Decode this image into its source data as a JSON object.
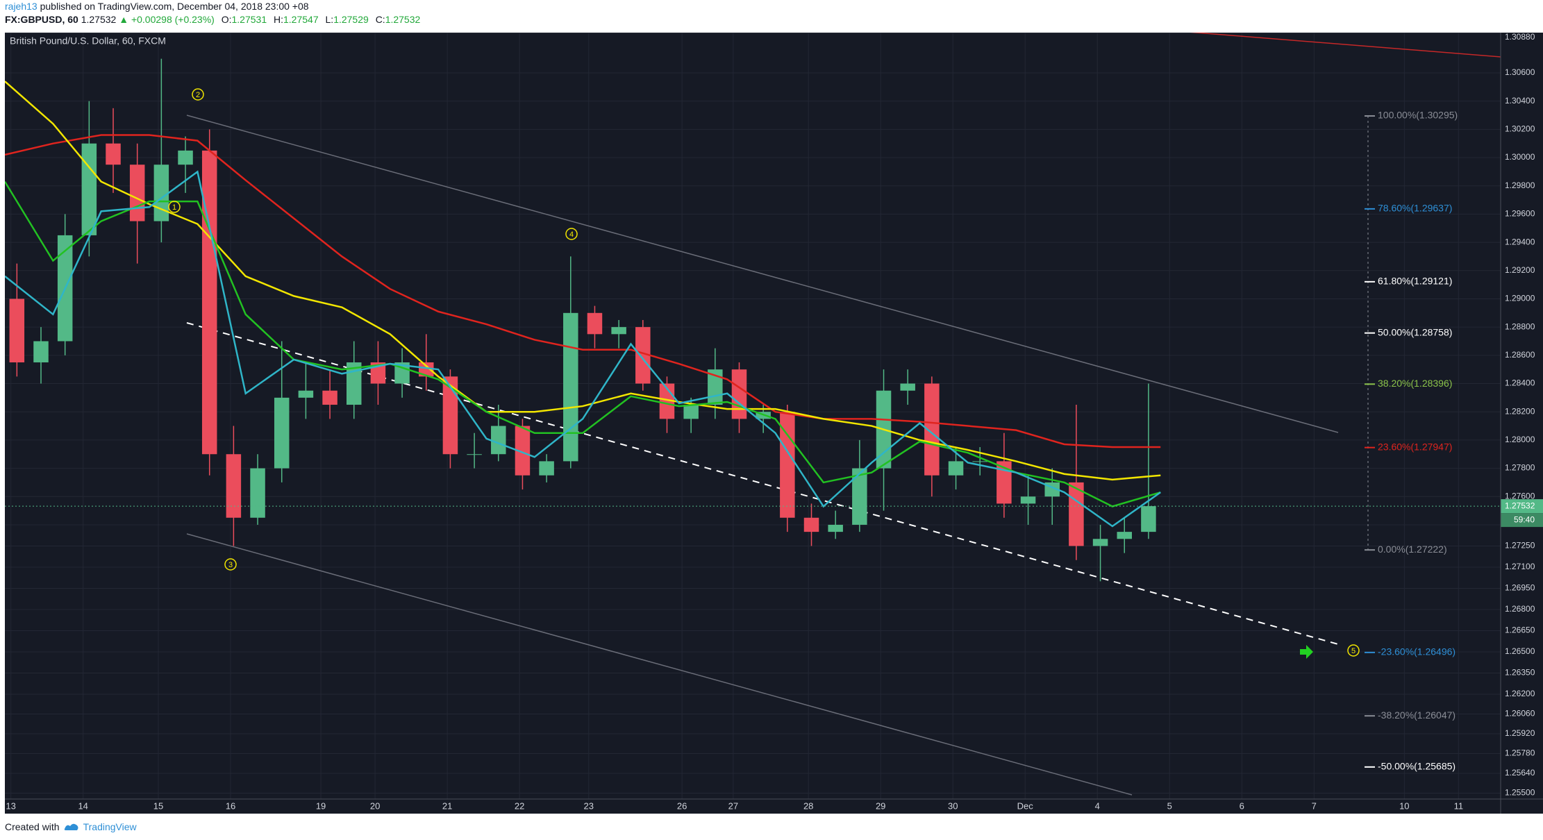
{
  "header": {
    "user": "rajeh13",
    "published": "published on TradingView.com, December 04, 2018 23:00 +08",
    "symbol": "FX:GBPUSD, 60",
    "last": "1.27532",
    "change": "▲ +0.00298 (+0.23%)",
    "ohlc": [
      {
        "key": "O:",
        "value": "1.27531"
      },
      {
        "key": "H:",
        "value": "1.27547"
      },
      {
        "key": "L:",
        "value": "1.27529"
      },
      {
        "key": "C:",
        "value": "1.27532"
      }
    ]
  },
  "chart_data": {
    "type": "candlestick",
    "title": "British Pound/U.S. Dollar, 60, FXCM",
    "xlim": [
      0,
      497
    ],
    "ylim": [
      1.25458,
      1.30885
    ],
    "grid": true,
    "xticks": [
      {
        "value": 2,
        "label": "13"
      },
      {
        "value": 26,
        "label": "14"
      },
      {
        "value": 51,
        "label": "15"
      },
      {
        "value": 75,
        "label": "16"
      },
      {
        "value": 105,
        "label": "19"
      },
      {
        "value": 123,
        "label": "20"
      },
      {
        "value": 147,
        "label": "21"
      },
      {
        "value": 171,
        "label": "22"
      },
      {
        "value": 194,
        "label": "23"
      },
      {
        "value": 225,
        "label": "26"
      },
      {
        "value": 242,
        "label": "27"
      },
      {
        "value": 267,
        "label": "28"
      },
      {
        "value": 291,
        "label": "29"
      },
      {
        "value": 315,
        "label": "30"
      },
      {
        "value": 339,
        "label": "Dec"
      },
      {
        "value": 363,
        "label": "4"
      },
      {
        "value": 387,
        "label": "5"
      },
      {
        "value": 411,
        "label": "6"
      },
      {
        "value": 435,
        "label": "7"
      },
      {
        "value": 465,
        "label": "10"
      },
      {
        "value": 483,
        "label": "11"
      }
    ],
    "yticks": [
      {
        "value": 1.3088,
        "label": "1.30880"
      },
      {
        "value": 1.306,
        "label": "1.30600"
      },
      {
        "value": 1.304,
        "label": "1.30400"
      },
      {
        "value": 1.302,
        "label": "1.30200"
      },
      {
        "value": 1.3,
        "label": "1.30000"
      },
      {
        "value": 1.298,
        "label": "1.29800"
      },
      {
        "value": 1.296,
        "label": "1.29600"
      },
      {
        "value": 1.294,
        "label": "1.29400"
      },
      {
        "value": 1.292,
        "label": "1.29200"
      },
      {
        "value": 1.29,
        "label": "1.29000"
      },
      {
        "value": 1.288,
        "label": "1.28800"
      },
      {
        "value": 1.286,
        "label": "1.28600"
      },
      {
        "value": 1.284,
        "label": "1.28400"
      },
      {
        "value": 1.282,
        "label": "1.28200"
      },
      {
        "value": 1.28,
        "label": "1.28000"
      },
      {
        "value": 1.278,
        "label": "1.27800"
      },
      {
        "value": 1.276,
        "label": "1.27600"
      },
      {
        "value": 1.274,
        "label": "1.27400"
      },
      {
        "value": 1.2725,
        "label": "1.27250"
      },
      {
        "value": 1.271,
        "label": "1.27100"
      },
      {
        "value": 1.2695,
        "label": "1.26950"
      },
      {
        "value": 1.268,
        "label": "1.26800"
      },
      {
        "value": 1.2665,
        "label": "1.26650"
      },
      {
        "value": 1.265,
        "label": "1.26500"
      },
      {
        "value": 1.2635,
        "label": "1.26350"
      },
      {
        "value": 1.262,
        "label": "1.26200"
      },
      {
        "value": 1.2606,
        "label": "1.26060"
      },
      {
        "value": 1.2592,
        "label": "1.25920"
      },
      {
        "value": 1.2578,
        "label": "1.25780"
      },
      {
        "value": 1.2564,
        "label": "1.25640"
      },
      {
        "value": 1.255,
        "label": "1.25500"
      }
    ],
    "candles": {
      "up_color": "#53b987",
      "down_color": "#eb4d5c",
      "x": [
        4,
        12,
        20,
        28,
        36,
        44,
        52,
        60,
        68,
        76,
        84,
        92,
        100,
        108,
        116,
        124,
        132,
        140,
        148,
        156,
        164,
        172,
        180,
        188,
        196,
        204,
        212,
        220,
        228,
        236,
        244,
        252,
        260,
        268,
        276,
        284,
        292,
        300,
        308,
        316,
        324,
        332,
        340,
        348,
        356,
        364,
        372,
        380
      ],
      "open": [
        1.29,
        1.2855,
        1.287,
        1.2945,
        1.301,
        1.2995,
        1.2955,
        1.2995,
        1.3005,
        1.279,
        1.2745,
        1.278,
        1.283,
        1.2835,
        1.2825,
        1.2855,
        1.284,
        1.2855,
        1.2845,
        1.279,
        1.279,
        1.281,
        1.2775,
        1.2785,
        1.289,
        1.2875,
        1.288,
        1.284,
        1.2815,
        1.2825,
        1.285,
        1.2815,
        1.282,
        1.2745,
        1.2735,
        1.274,
        1.278,
        1.2835,
        1.284,
        1.2775,
        1.2785,
        1.2785,
        1.2755,
        1.276,
        1.277,
        1.2725,
        1.273,
        1.2735
      ],
      "high": [
        1.2925,
        1.288,
        1.296,
        1.304,
        1.3035,
        1.301,
        1.307,
        1.3015,
        1.302,
        1.281,
        1.279,
        1.287,
        1.2855,
        1.285,
        1.287,
        1.287,
        1.2865,
        1.2875,
        1.285,
        1.2805,
        1.2825,
        1.2815,
        1.279,
        1.293,
        1.2895,
        1.2885,
        1.2885,
        1.2845,
        1.283,
        1.2865,
        1.2855,
        1.2825,
        1.2825,
        1.2755,
        1.275,
        1.28,
        1.285,
        1.285,
        1.2845,
        1.2795,
        1.2795,
        1.2805,
        1.2775,
        1.278,
        1.2825,
        1.274,
        1.2745,
        1.284
      ],
      "low": [
        1.2845,
        1.284,
        1.286,
        1.293,
        1.2975,
        1.2925,
        1.294,
        1.2975,
        1.2775,
        1.2725,
        1.274,
        1.277,
        1.2815,
        1.2815,
        1.2815,
        1.2825,
        1.283,
        1.2835,
        1.278,
        1.278,
        1.2785,
        1.2765,
        1.277,
        1.278,
        1.2865,
        1.2865,
        1.2835,
        1.2805,
        1.2805,
        1.2815,
        1.2805,
        1.2805,
        1.2735,
        1.2725,
        1.273,
        1.2735,
        1.275,
        1.2825,
        1.276,
        1.2765,
        1.2775,
        1.2745,
        1.274,
        1.274,
        1.2715,
        1.27,
        1.272,
        1.273
      ],
      "close": [
        1.2855,
        1.287,
        1.2945,
        1.301,
        1.2995,
        1.2955,
        1.2995,
        1.3005,
        1.279,
        1.2745,
        1.278,
        1.283,
        1.2835,
        1.2825,
        1.2855,
        1.284,
        1.2855,
        1.2845,
        1.279,
        1.279,
        1.281,
        1.2775,
        1.2785,
        1.289,
        1.2875,
        1.288,
        1.284,
        1.2815,
        1.2825,
        1.285,
        1.2815,
        1.282,
        1.2745,
        1.2735,
        1.274,
        1.278,
        1.2835,
        1.284,
        1.2775,
        1.2785,
        1.2785,
        1.2755,
        1.276,
        1.277,
        1.2725,
        1.273,
        1.2735,
        1.27532
      ]
    },
    "moving_averages": [
      {
        "color": "#e0241e",
        "x": [
          0,
          16,
          32,
          48,
          64,
          80,
          96,
          112,
          128,
          144,
          160,
          176,
          192,
          208,
          224,
          240,
          256,
          272,
          288,
          304,
          320,
          336,
          352,
          368,
          384
        ],
        "values": [
          1.3002,
          1.301,
          1.3016,
          1.3016,
          1.3012,
          1.2984,
          1.2957,
          1.293,
          1.2907,
          1.2891,
          1.2882,
          1.2871,
          1.2864,
          1.2864,
          1.2854,
          1.2843,
          1.282,
          1.2815,
          1.2815,
          1.2813,
          1.281,
          1.2807,
          1.2797,
          1.2795,
          1.2795
        ]
      },
      {
        "color": "#f2e600",
        "x": [
          0,
          16,
          32,
          48,
          64,
          80,
          96,
          112,
          128,
          144,
          160,
          176,
          192,
          208,
          224,
          240,
          256,
          272,
          288,
          304,
          320,
          336,
          352,
          368,
          384
        ],
        "values": [
          1.3054,
          1.3024,
          1.2983,
          1.2967,
          1.2953,
          1.2916,
          1.2902,
          1.2894,
          1.2875,
          1.2845,
          1.282,
          1.282,
          1.2824,
          1.2833,
          1.2827,
          1.2822,
          1.2822,
          1.2815,
          1.281,
          1.28,
          1.2793,
          1.2785,
          1.2776,
          1.2772,
          1.2775
        ]
      },
      {
        "color": "#22c122",
        "x": [
          0,
          16,
          32,
          48,
          64,
          80,
          96,
          112,
          128,
          144,
          160,
          176,
          192,
          208,
          224,
          240,
          256,
          272,
          288,
          304,
          320,
          336,
          352,
          368,
          384
        ],
        "values": [
          1.2983,
          1.2927,
          1.2955,
          1.2969,
          1.2969,
          1.2889,
          1.2857,
          1.285,
          1.2854,
          1.2843,
          1.282,
          1.2805,
          1.2805,
          1.2831,
          1.2824,
          1.2827,
          1.2815,
          1.277,
          1.2777,
          1.2799,
          1.2791,
          1.2777,
          1.277,
          1.2753,
          1.2763
        ]
      },
      {
        "color": "#2fb5c8",
        "x": [
          0,
          16,
          32,
          48,
          64,
          80,
          96,
          112,
          128,
          144,
          160,
          176,
          192,
          208,
          224,
          240,
          256,
          272,
          288,
          304,
          320,
          336,
          352,
          368,
          384
        ],
        "values": [
          1.2916,
          1.2889,
          1.2962,
          1.2965,
          1.299,
          1.2833,
          1.2857,
          1.2847,
          1.2854,
          1.285,
          1.2801,
          1.2788,
          1.2815,
          1.2868,
          1.2826,
          1.2833,
          1.2805,
          1.2753,
          1.2784,
          1.2812,
          1.2784,
          1.2777,
          1.2763,
          1.2739,
          1.2763
        ]
      }
    ],
    "fib_levels": [
      {
        "label": "100.00%(1.30295)",
        "value": 1.30295,
        "color": "#8a8d96"
      },
      {
        "label": "78.60%(1.29637)",
        "value": 1.29637,
        "color": "#2e8fd6"
      },
      {
        "label": "61.80%(1.29121)",
        "value": 1.29121,
        "color": "#ffffff"
      },
      {
        "label": "50.00%(1.28758)",
        "value": 1.28758,
        "color": "#ffffff"
      },
      {
        "label": "38.20%(1.28396)",
        "value": 1.28396,
        "color": "#8bc34a"
      },
      {
        "label": "23.60%(1.27947)",
        "value": 1.27947,
        "color": "#e0241e"
      },
      {
        "label": "0.00%(1.27222)",
        "value": 1.27222,
        "color": "#8a8d96"
      },
      {
        "label": "-23.60%(1.26496)",
        "value": 1.26496,
        "color": "#2e8fd6"
      },
      {
        "label": "-38.20%(1.26047)",
        "value": 1.26047,
        "color": "#8a8d96"
      },
      {
        "label": "-50.00%(1.25685)",
        "value": 1.25685,
        "color": "#ffffff"
      }
    ],
    "annotations": [
      "1",
      "2",
      "3",
      "4",
      "5"
    ],
    "last_price": 1.27532,
    "countdown": "59:40"
  },
  "footer": {
    "prefix": "Created with",
    "brand": "TradingView"
  }
}
